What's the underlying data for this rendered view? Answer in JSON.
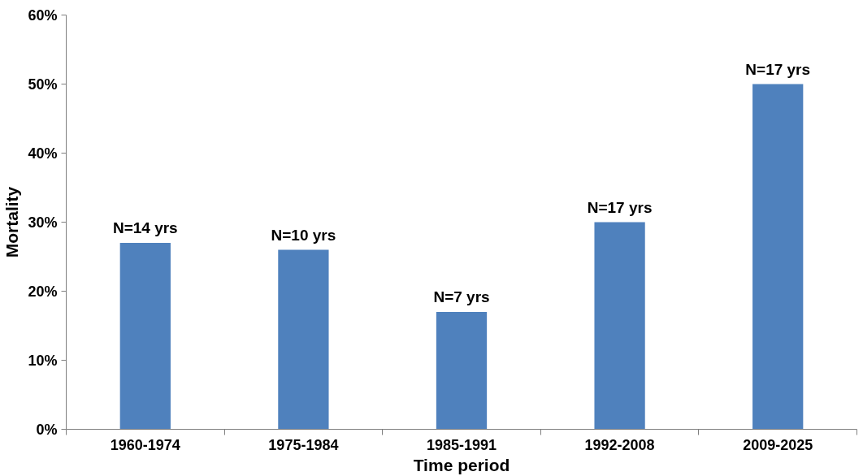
{
  "chart_data": {
    "type": "bar",
    "xlabel": "Time period",
    "ylabel": "Mortality",
    "categories": [
      "1960-1974",
      "1975-1984",
      "1985-1991",
      "1992-2008",
      "2009-2025"
    ],
    "values": [
      27,
      26,
      17,
      30,
      50
    ],
    "color": "#4f81bd",
    "ylim": [
      0,
      60
    ],
    "yticks": [
      {
        "value": 0,
        "label": "0%"
      },
      {
        "value": 10,
        "label": "10%"
      },
      {
        "value": 20,
        "label": "20%"
      },
      {
        "value": 30,
        "label": "30%"
      },
      {
        "value": 40,
        "label": "40%"
      },
      {
        "value": 50,
        "label": "50%"
      },
      {
        "value": 60,
        "label": "60%"
      }
    ],
    "annotations": [
      {
        "text": "N=14 yrs",
        "x": "1960-1974",
        "y": 27
      },
      {
        "text": "N=10 yrs",
        "x": "1975-1984",
        "y": 26
      },
      {
        "text": "N=7 yrs",
        "x": "1985-1991",
        "y": 17
      },
      {
        "text": "N=17 yrs",
        "x": "1992-2008",
        "y": 30
      },
      {
        "text": "N=17 yrs",
        "x": "2009-2025",
        "y": 50
      }
    ],
    "grid": false
  }
}
